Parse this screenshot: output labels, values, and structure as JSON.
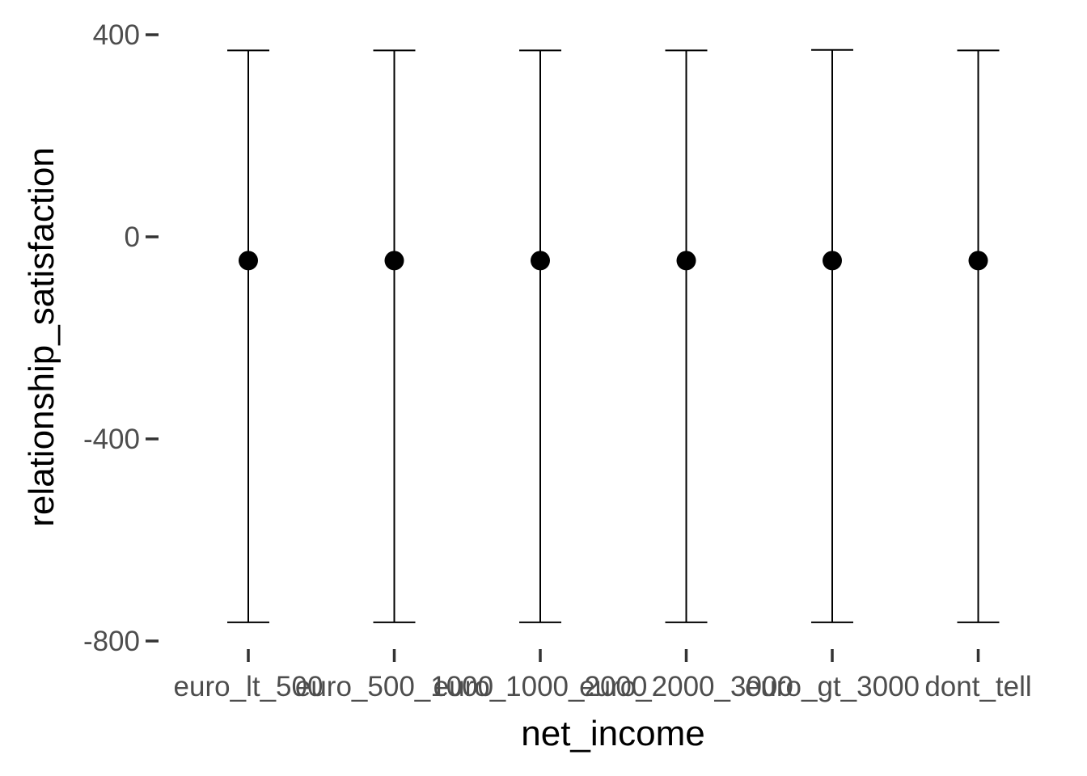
{
  "chart_data": {
    "type": "errorbar",
    "xlabel": "net_income",
    "ylabel": "relationship_satisfaction",
    "categories": [
      "euro_lt_500",
      "euro_500_1000",
      "euro_1000_2000",
      "euro_2000_3000",
      "euro_gt_3000",
      "dont_tell"
    ],
    "points": [
      {
        "category": "euro_lt_500",
        "y": -47,
        "ymin": -763,
        "ymax": 369
      },
      {
        "category": "euro_500_1000",
        "y": -47,
        "ymin": -763,
        "ymax": 369
      },
      {
        "category": "euro_1000_2000",
        "y": -47,
        "ymin": -763,
        "ymax": 369
      },
      {
        "category": "euro_2000_3000",
        "y": -47,
        "ymin": -763,
        "ymax": 369
      },
      {
        "category": "euro_gt_3000",
        "y": -47,
        "ymin": -763,
        "ymax": 370
      },
      {
        "category": "dont_tell",
        "y": -47,
        "ymin": -763,
        "ymax": 369
      }
    ],
    "y_ticks": [
      400,
      0,
      -400,
      -800
    ],
    "ylim": [
      -800,
      400
    ],
    "grid": false,
    "legend": "none",
    "colors": {
      "point": "#000000",
      "errorbar": "#000000",
      "tick_label": "#4d4d4d",
      "axis_title": "#000000"
    }
  }
}
